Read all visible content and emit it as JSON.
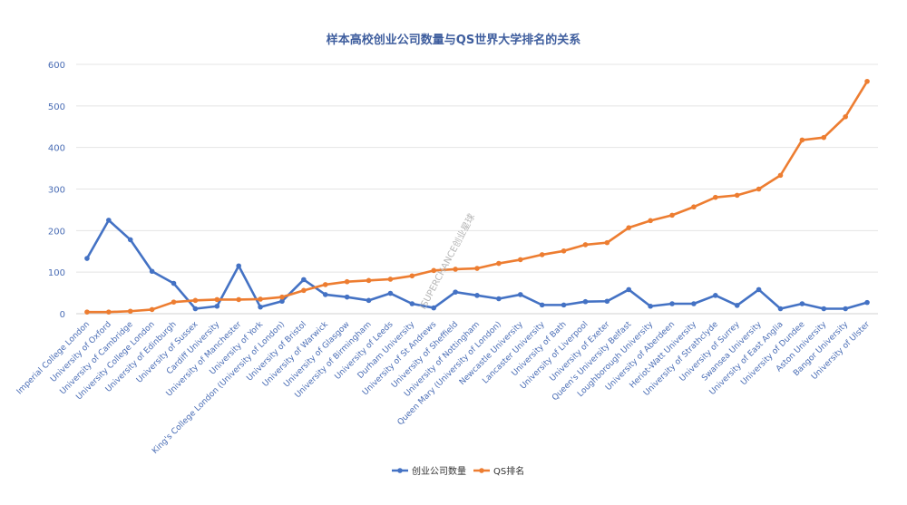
{
  "chart_data": {
    "type": "line",
    "title": "样本高校创业公司数量与QS世界大学排名的关系",
    "watermark": "ISUPERCHANCE创业星球",
    "ylim": [
      0,
      600
    ],
    "yticks": [
      0,
      100,
      200,
      300,
      400,
      500,
      600
    ],
    "grid": true,
    "legend_position": "bottom",
    "categories": [
      "Imperial College London",
      "University of Oxford",
      "University of Cambridge",
      "University College London",
      "University of Edinburgh",
      "University of Sussex",
      "Cardiff University",
      "University of Manchester",
      "University of York",
      "King's College London (University of London)",
      "University of Bristol",
      "University of Warwick",
      "University of Glasgow",
      "University of Birmingham",
      "University of Leeds",
      "Durham University",
      "University of St Andrews",
      "University of Sheffield",
      "University of Nottingham",
      "Queen Mary (University of London)",
      "Newcastle University",
      "Lancaster University",
      "University of Bath",
      "University of Liverpool",
      "University of Exeter",
      "Queen's University Belfast",
      "Loughborough University",
      "University of Aberdeen",
      "Heriot-Watt University",
      "University of Strathclyde",
      "University of Surrey",
      "Swansea University",
      "University of East Anglia",
      "University of Dundee",
      "Aston University",
      "Bangor University",
      "University of Ulster"
    ],
    "series": [
      {
        "name": "创业公司数量",
        "color": "#4472c4",
        "values": [
          133,
          225,
          178,
          102,
          73,
          12,
          18,
          115,
          16,
          30,
          82,
          46,
          40,
          32,
          49,
          24,
          14,
          52,
          44,
          36,
          46,
          21,
          21,
          29,
          30,
          58,
          18,
          24,
          24,
          44,
          20,
          58,
          12,
          24,
          12,
          12,
          27
        ]
      },
      {
        "name": "QS排名",
        "color": "#ed7d31",
        "values": [
          4,
          4,
          6,
          10,
          28,
          32,
          34,
          34,
          35,
          40,
          56,
          70,
          77,
          80,
          83,
          91,
          104,
          107,
          109,
          121,
          130,
          142,
          151,
          166,
          171,
          207,
          224,
          237,
          257,
          280,
          285,
          300,
          333,
          418,
          424,
          474,
          559
        ]
      }
    ]
  }
}
